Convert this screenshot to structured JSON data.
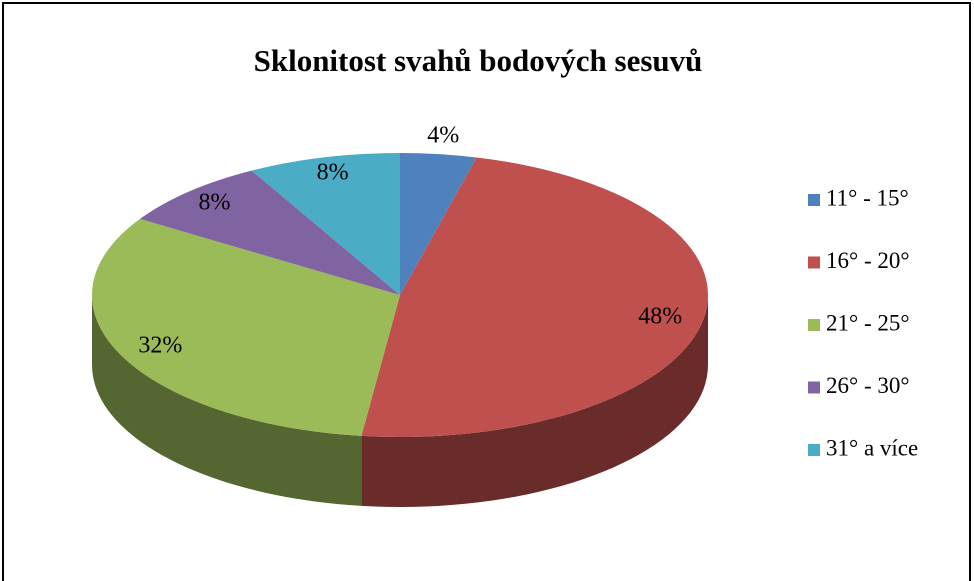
{
  "chart_data": {
    "type": "pie",
    "title": "Sklonitost svahů bodových sesuvů",
    "categories": [
      "11° - 15°",
      "16° - 20°",
      "21° - 25°",
      "26° - 30°",
      "31° a více"
    ],
    "values": [
      4,
      48,
      32,
      8,
      8
    ],
    "value_labels": [
      "4%",
      "48%",
      "32%",
      "8%",
      "8%"
    ],
    "colors": [
      "#4f81bd",
      "#c0504d",
      "#9bbb59",
      "#8064a2",
      "#4bacc6"
    ],
    "legend": "right"
  }
}
